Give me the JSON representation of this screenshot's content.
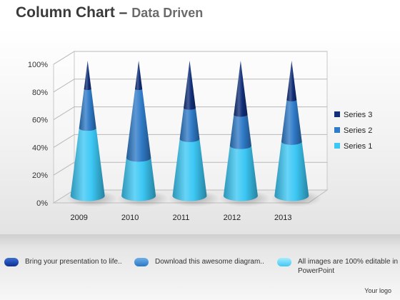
{
  "slide": {
    "title_main": "Column Chart",
    "title_dash": "–",
    "title_sub": "Data Driven"
  },
  "chart_data": {
    "type": "bar",
    "style": "3d-cone-stacked-percent",
    "categories": [
      "2009",
      "2010",
      "2011",
      "2012",
      "2013"
    ],
    "series": [
      {
        "name": "Series 1",
        "values": [
          50,
          28,
          42,
          37,
          40
        ],
        "color": "#3cc8f5"
      },
      {
        "name": "Series 2",
        "values": [
          29,
          51,
          23,
          23,
          31
        ],
        "color": "#2f7bc8"
      },
      {
        "name": "Series 3",
        "values": [
          21,
          21,
          35,
          40,
          29
        ],
        "color": "#12307a"
      }
    ],
    "yticks": [
      "0%",
      "20%",
      "40%",
      "60%",
      "80%",
      "100%"
    ],
    "ylim": [
      0,
      100
    ],
    "grid": true,
    "legend_position": "right"
  },
  "footer": {
    "items": [
      {
        "text": "Bring your presentation to life..",
        "color": "#0d2f95"
      },
      {
        "text": "Download this  awesome  diagram..",
        "color": "#2a77c8"
      },
      {
        "text": "All images are 100% editable in PowerPoint",
        "color": "#43c7f4"
      }
    ],
    "logo": "Your logo"
  }
}
